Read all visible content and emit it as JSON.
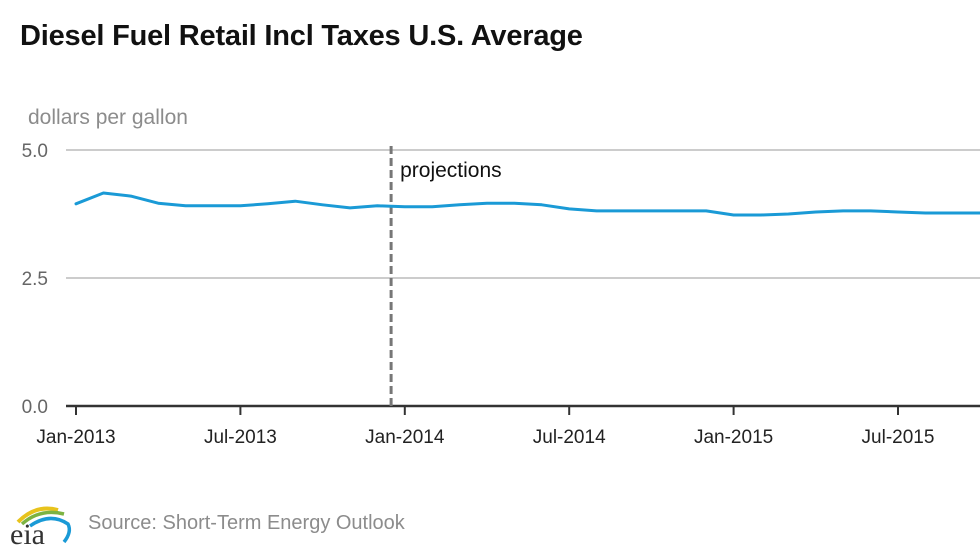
{
  "chart_data": {
    "type": "line",
    "title": "Diesel Fuel Retail Incl Taxes U.S. Average",
    "ylabel": "dollars per gallon",
    "xlabel": "",
    "ylim": [
      0,
      5
    ],
    "yticks": [
      0,
      2.5,
      5
    ],
    "ytick_labels": [
      "0.0",
      "2.5",
      "5.0"
    ],
    "xticks": [
      {
        "month_index": 0,
        "label": "Jan-2013"
      },
      {
        "month_index": 6,
        "label": "Jul-2013"
      },
      {
        "month_index": 12,
        "label": "Jan-2014"
      },
      {
        "month_index": 18,
        "label": "Jul-2014"
      },
      {
        "month_index": 24,
        "label": "Jan-2015"
      },
      {
        "month_index": 30,
        "label": "Jul-2015"
      }
    ],
    "x_start": "Jan-2013",
    "x_range_months": [
      0,
      33.2
    ],
    "grid": "horizontal",
    "series": [
      {
        "name": "Diesel Fuel Retail Incl Taxes U.S. Average",
        "color": "#1a9ad6",
        "x": [
          0,
          1,
          2,
          3,
          4,
          5,
          6,
          7,
          8,
          9,
          10,
          11,
          12,
          13,
          14,
          15,
          16,
          17,
          18,
          19,
          20,
          21,
          22,
          23,
          24,
          25,
          26,
          27,
          28,
          29,
          30,
          31,
          32,
          33
        ],
        "values": [
          3.95,
          4.16,
          4.1,
          3.96,
          3.91,
          3.91,
          3.91,
          3.95,
          4.0,
          3.93,
          3.87,
          3.91,
          3.89,
          3.89,
          3.93,
          3.96,
          3.96,
          3.93,
          3.85,
          3.81,
          3.81,
          3.81,
          3.81,
          3.81,
          3.73,
          3.73,
          3.75,
          3.79,
          3.81,
          3.81,
          3.79,
          3.77,
          3.77,
          3.77
        ]
      }
    ],
    "annotations": [
      {
        "type": "vline",
        "month_index": 11.5,
        "style": "dashed",
        "color": "#777777",
        "label": "projections"
      }
    ]
  },
  "footer": {
    "logo_text": "eia",
    "source": "Source: Short-Term Energy Outlook"
  }
}
